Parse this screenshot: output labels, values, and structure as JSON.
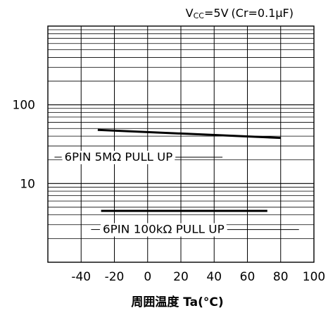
{
  "chart_data": {
    "type": "line",
    "condition": {
      "prefix": "V",
      "subscript": "CC",
      "rest": "=5V",
      "paren": "(Cr=0.1μF)"
    },
    "xlabel": "周囲温度 Ta(°C)",
    "ylabel": "",
    "xlim": [
      -60,
      100
    ],
    "ylim": [
      1,
      1000
    ],
    "y_scale": "log",
    "grid": true,
    "x_ticks": [
      "-40",
      "-20",
      "0",
      "20",
      "40",
      "60",
      "80",
      "100"
    ],
    "y_ticks": [
      "100",
      "10"
    ],
    "series": [
      {
        "name": "6PIN 5MΩ PULL UP",
        "x": [
          -30,
          80
        ],
        "y": [
          48,
          38
        ]
      },
      {
        "name": "6PIN 100kΩ PULL UP",
        "x": [
          -28,
          72
        ],
        "y": [
          4.5,
          4.5
        ]
      }
    ],
    "annotations": [
      {
        "text": "6PIN 5MΩ PULL UP"
      },
      {
        "text": "6PIN 100kΩ PULL UP"
      }
    ]
  }
}
